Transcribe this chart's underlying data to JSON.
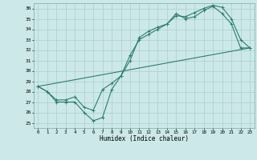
{
  "title": "",
  "xlabel": "Humidex (Indice chaleur)",
  "xlim": [
    -0.5,
    23.5
  ],
  "ylim": [
    24.5,
    36.5
  ],
  "yticks": [
    25,
    26,
    27,
    28,
    29,
    30,
    31,
    32,
    33,
    34,
    35,
    36
  ],
  "xticks": [
    0,
    1,
    2,
    3,
    4,
    5,
    6,
    7,
    8,
    9,
    10,
    11,
    12,
    13,
    14,
    15,
    16,
    17,
    18,
    19,
    20,
    21,
    22,
    23
  ],
  "line_color": "#2e7d6e",
  "bg_color": "#cce8e8",
  "grid_color": "#aacfcf",
  "series": [
    {
      "x": [
        0,
        1,
        2,
        3,
        4,
        5,
        6,
        7,
        8,
        9,
        10,
        11,
        12,
        13,
        14,
        15,
        16,
        17,
        18,
        19,
        20,
        21,
        22,
        23
      ],
      "y": [
        28.5,
        28.0,
        27.0,
        27.0,
        27.0,
        26.0,
        25.2,
        25.5,
        28.2,
        29.5,
        31.0,
        33.2,
        33.8,
        34.2,
        34.5,
        35.5,
        35.0,
        35.2,
        35.8,
        36.2,
        35.5,
        34.5,
        32.2,
        32.2
      ]
    },
    {
      "x": [
        0,
        1,
        2,
        3,
        4,
        5,
        6,
        7,
        8,
        9,
        10,
        11,
        12,
        13,
        14,
        15,
        16,
        17,
        18,
        19,
        20,
        21,
        22,
        23
      ],
      "y": [
        28.5,
        28.0,
        27.2,
        27.2,
        27.5,
        26.5,
        26.2,
        28.2,
        28.8,
        29.5,
        31.5,
        33.0,
        33.5,
        34.0,
        34.5,
        35.3,
        35.2,
        35.6,
        36.0,
        36.3,
        36.1,
        35.0,
        33.0,
        32.2
      ]
    },
    {
      "x": [
        0,
        23
      ],
      "y": [
        28.5,
        32.2
      ]
    }
  ]
}
